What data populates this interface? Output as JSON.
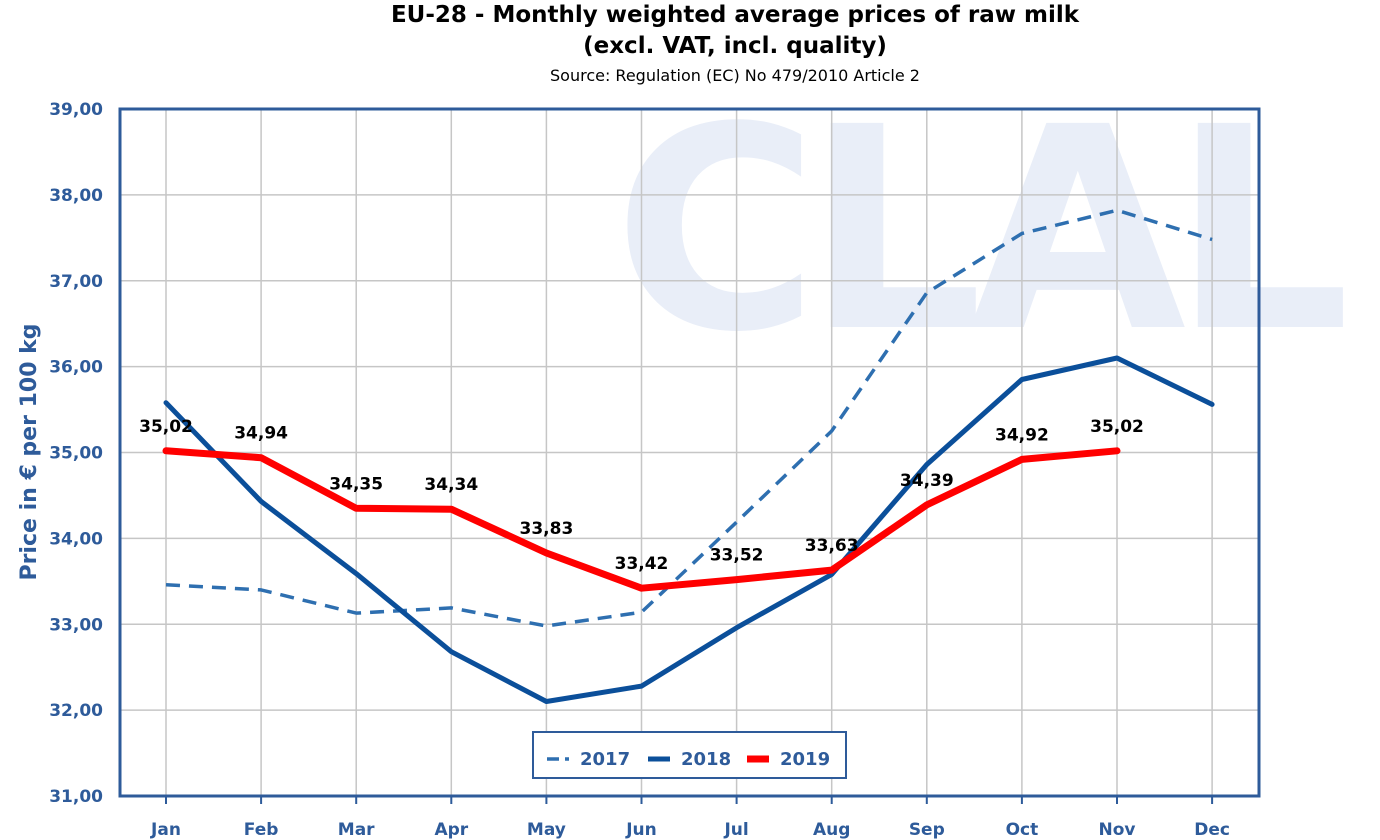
{
  "title_line1": "EU-28 - Monthly weighted average prices of raw milk",
  "title_line2": "(excl. VAT, incl. quality)",
  "subtitle": "Source: Regulation (EC) No 479/2010 Article 2",
  "watermark": "CLAL",
  "chart_data": {
    "type": "line",
    "categories": [
      "Jan",
      "Feb",
      "Mar",
      "Apr",
      "May",
      "Jun",
      "Jul",
      "Aug",
      "Sep",
      "Oct",
      "Nov",
      "Dec"
    ],
    "y_ticks": [
      "31,00",
      "32,00",
      "33,00",
      "34,00",
      "35,00",
      "36,00",
      "37,00",
      "38,00",
      "39,00"
    ],
    "ylim": [
      31,
      39
    ],
    "ylabel": "Price in € per 100 kg",
    "xlabel": "",
    "grid": true,
    "legend_position": "bottom-center",
    "series": [
      {
        "name": "2017",
        "style": "dashed",
        "color": "#2e6fb0",
        "values": [
          33.46,
          33.4,
          33.13,
          33.19,
          32.98,
          33.14,
          34.19,
          35.25,
          36.86,
          37.55,
          37.82,
          37.48
        ]
      },
      {
        "name": "2018",
        "style": "solid",
        "color": "#0b4f9a",
        "values": [
          35.58,
          34.43,
          33.59,
          32.68,
          32.1,
          32.28,
          32.96,
          33.58,
          34.86,
          35.85,
          36.1,
          35.56
        ]
      },
      {
        "name": "2019",
        "style": "solid",
        "color": "#ff0000",
        "values": [
          35.02,
          34.94,
          34.35,
          34.34,
          33.83,
          33.42,
          33.52,
          33.63,
          34.39,
          34.92,
          35.02,
          null
        ],
        "data_labels": [
          "35,02",
          "34,94",
          "34,35",
          "34,34",
          "33,83",
          "33,42",
          "33,52",
          "33,63",
          "34,39",
          "34,92",
          "35,02",
          null
        ]
      }
    ]
  }
}
